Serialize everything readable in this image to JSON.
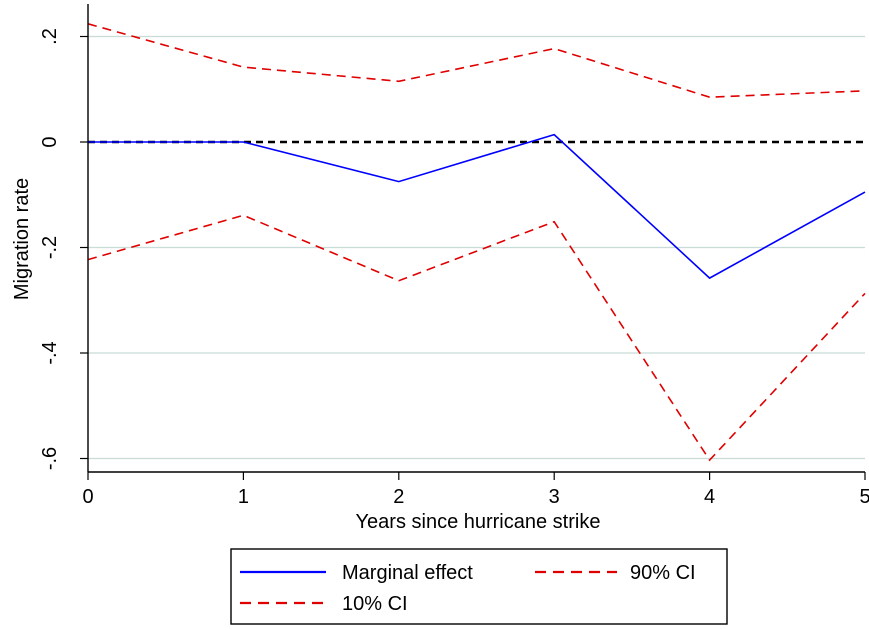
{
  "chart_data": {
    "type": "line",
    "title": "",
    "xlabel": "Years since hurricane strike",
    "ylabel": "Migration rate",
    "x": [
      0,
      1,
      2,
      3,
      4,
      5
    ],
    "xticks": [
      0,
      1,
      2,
      3,
      4,
      5
    ],
    "xtick_labels": [
      "0",
      "1",
      "2",
      "3",
      "4",
      "5"
    ],
    "yticks": [
      0.2,
      0,
      -0.2,
      -0.4,
      -0.6
    ],
    "ytick_labels": [
      ".2",
      "0",
      "-.2",
      "-.4",
      "-.6"
    ],
    "xlim": [
      0,
      5
    ],
    "ylim": [
      -0.64,
      0.25
    ],
    "grid": "horizontal",
    "reference_line": 0,
    "series": [
      {
        "name": "Marginal effect",
        "values": [
          0.0,
          0.0,
          -0.075,
          0.014,
          -0.258,
          -0.095
        ],
        "color": "#0000ff",
        "style": "solid"
      },
      {
        "name": "90% CI",
        "values": [
          0.224,
          0.142,
          0.115,
          0.177,
          0.085,
          0.097
        ],
        "color": "#e00000",
        "style": "dashed"
      },
      {
        "name": "10% CI",
        "values": [
          -0.223,
          -0.139,
          -0.263,
          -0.151,
          -0.603,
          -0.287
        ],
        "color": "#e00000",
        "style": "dashed"
      }
    ],
    "legend": {
      "placement": "bottom",
      "entries": [
        "Marginal effect",
        "90% CI",
        "10% CI"
      ]
    },
    "colors": {
      "grid": "#c8dcd8",
      "reference": "#000000"
    }
  }
}
